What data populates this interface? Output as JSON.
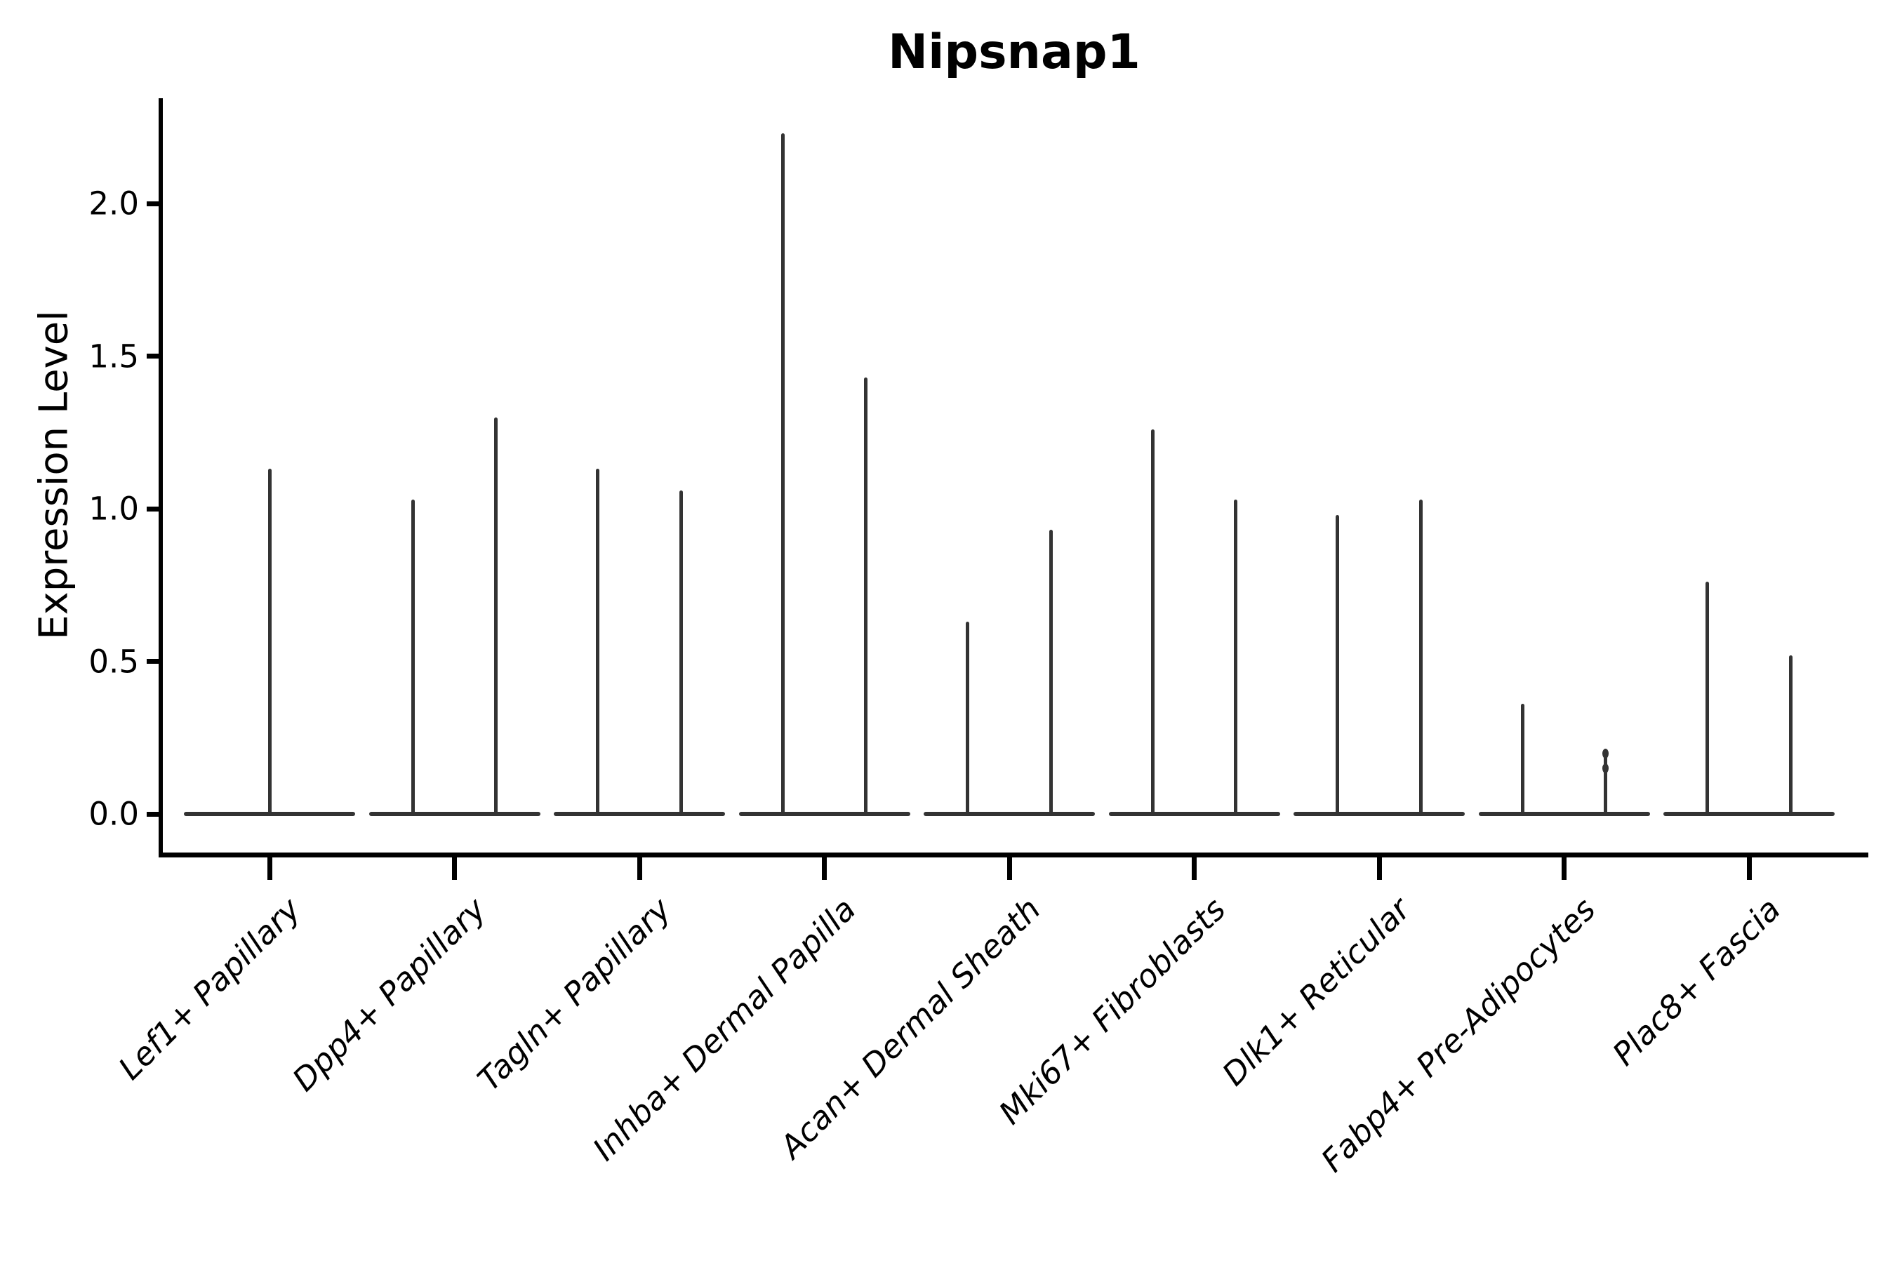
{
  "chart_data": {
    "type": "violin",
    "title": "Nipsnap1",
    "ylabel": "Expression Level",
    "xlabel": "",
    "ylim": [
      0,
      2.37
    ],
    "yticks": [
      0.0,
      0.5,
      1.0,
      1.5,
      2.0
    ],
    "ytick_labels": [
      "0.0",
      "0.5",
      "1.0",
      "1.5",
      "2.0"
    ],
    "grid": "off",
    "legend": "none",
    "style_note": "Seurat-style violin plot; violins are collapsed to thin vertical spikes over a flat baseline plate at 0 because most cells have zero expression",
    "violin_color": "#333333",
    "axis_color": "#000000",
    "text_color": "#000000",
    "background_color": "#ffffff",
    "categories": [
      {
        "label": "Lef1+ Papillary",
        "violin_maxima": [
          1.13
        ]
      },
      {
        "label": "Dpp4+ Papillary",
        "violin_maxima": [
          1.03,
          1.3
        ]
      },
      {
        "label": "Tagln+ Papillary",
        "violin_maxima": [
          1.13,
          1.06
        ]
      },
      {
        "label": "Inhba+ Dermal Papilla",
        "violin_maxima": [
          2.23,
          1.43
        ]
      },
      {
        "label": "Acan+ Dermal Sheath",
        "violin_maxima": [
          0.63,
          0.93
        ]
      },
      {
        "label": "Mki67+ Fibroblasts",
        "violin_maxima": [
          1.26,
          1.03
        ]
      },
      {
        "label": "Dlk1+ Reticular",
        "violin_maxima": [
          0.98,
          1.03
        ]
      },
      {
        "label": "Fabp4+ Pre-Adipocytes",
        "violin_maxima": [
          0.36,
          0.21
        ],
        "tip_bulge_violin_index": 1,
        "bulge_values": [
          0.21,
          0.16
        ]
      },
      {
        "label": "Plac8+ Fascia",
        "violin_maxima": [
          0.76,
          0.52
        ]
      }
    ]
  }
}
